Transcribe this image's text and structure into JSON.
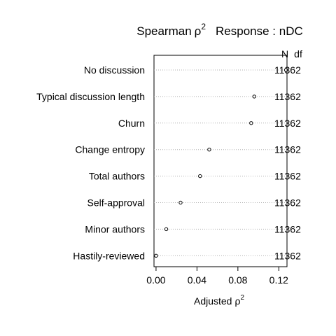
{
  "chart_data": {
    "type": "scatter",
    "title": {
      "metric": "Spearman",
      "symbol": "ρ",
      "power": "2",
      "response": "Response : nDC"
    },
    "xlabel": {
      "text": "Adjusted",
      "symbol": "ρ",
      "power": "2"
    },
    "xlim": [
      -0.002,
      0.128
    ],
    "xticks": [
      "0.00",
      "0.04",
      "0.08",
      "0.12"
    ],
    "columns": [
      "N",
      "df"
    ],
    "categories": [
      "No discussion",
      "Typical discussion length",
      "Churn",
      "Change entropy",
      "Total authors",
      "Self-approval",
      "Minor authors",
      "Hastily-reviewed"
    ],
    "values": [
      0.127,
      0.096,
      0.093,
      0.052,
      0.043,
      0.024,
      0.01,
      0.0
    ],
    "N": [
      "1136",
      "1136",
      "1136",
      "1136",
      "1136",
      "1136",
      "1136",
      "1136"
    ],
    "df": [
      "2",
      "2",
      "2",
      "2",
      "2",
      "2",
      "2",
      "2"
    ],
    "grid": "dotted horizontal"
  }
}
